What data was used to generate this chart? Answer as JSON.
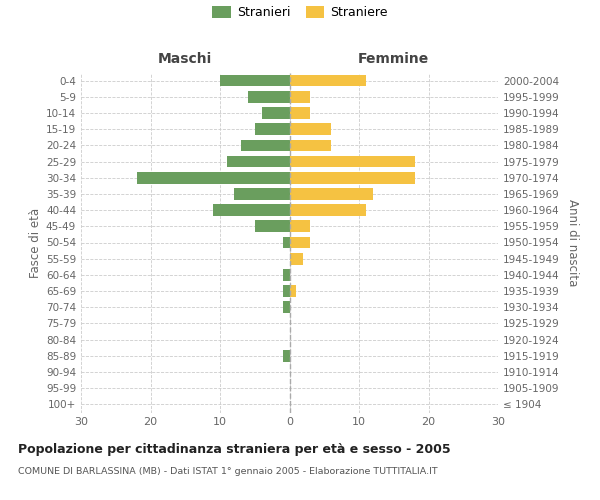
{
  "age_groups": [
    "100+",
    "95-99",
    "90-94",
    "85-89",
    "80-84",
    "75-79",
    "70-74",
    "65-69",
    "60-64",
    "55-59",
    "50-54",
    "45-49",
    "40-44",
    "35-39",
    "30-34",
    "25-29",
    "20-24",
    "15-19",
    "10-14",
    "5-9",
    "0-4"
  ],
  "birth_years": [
    "≤ 1904",
    "1905-1909",
    "1910-1914",
    "1915-1919",
    "1920-1924",
    "1925-1929",
    "1930-1934",
    "1935-1939",
    "1940-1944",
    "1945-1949",
    "1950-1954",
    "1955-1959",
    "1960-1964",
    "1965-1969",
    "1970-1974",
    "1975-1979",
    "1980-1984",
    "1985-1989",
    "1990-1994",
    "1995-1999",
    "2000-2004"
  ],
  "males": [
    0,
    0,
    0,
    1,
    0,
    0,
    1,
    1,
    1,
    0,
    1,
    5,
    11,
    8,
    22,
    9,
    7,
    5,
    4,
    6,
    10
  ],
  "females": [
    0,
    0,
    0,
    0,
    0,
    0,
    0,
    1,
    0,
    2,
    3,
    3,
    11,
    12,
    18,
    18,
    6,
    6,
    3,
    3,
    11
  ],
  "male_color": "#6a9e5e",
  "female_color": "#f5c242",
  "title_main": "Popolazione per cittadinanza straniera per età e sesso - 2005",
  "title_sub": "COMUNE DI BARLASSINA (MB) - Dati ISTAT 1° gennaio 2005 - Elaborazione TUTTITALIA.IT",
  "legend_male": "Stranieri",
  "legend_female": "Straniere",
  "label_maschi": "Maschi",
  "label_femmine": "Femmine",
  "ylabel_left": "Fasce di età",
  "ylabel_right": "Anni di nascita",
  "xlim": 30,
  "bg": "#ffffff",
  "grid_color": "#cccccc"
}
